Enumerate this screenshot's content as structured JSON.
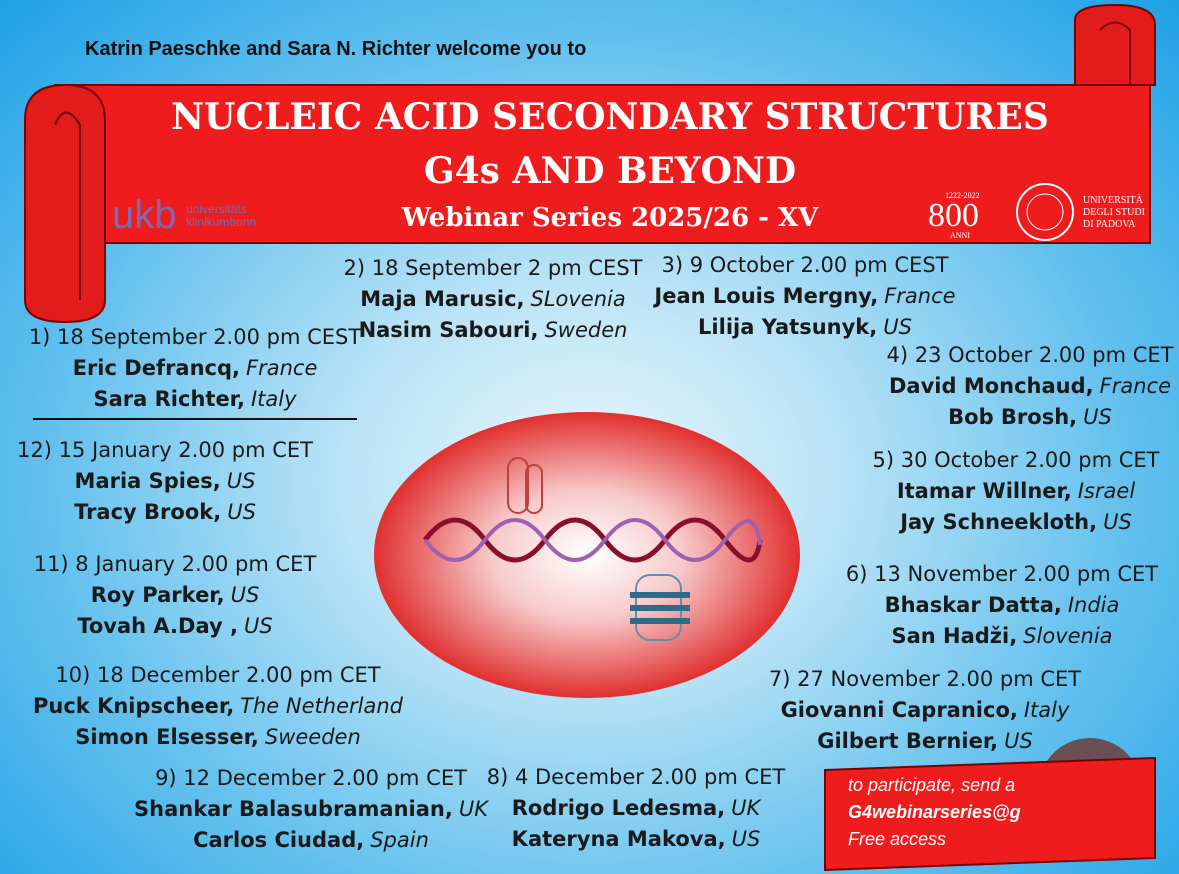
{
  "header": {
    "intro": "Katrin Paeschke and Sara N. Richter welcome you to"
  },
  "banner": {
    "title_line1": "NUCLEIC ACID SECONDARY STRUCTURES",
    "title_line2": "G4s AND BEYOND",
    "subtitle": "Webinar Series 2025/26 - XV",
    "left_logo": {
      "mark": "ukb",
      "line1": "universitäts",
      "line2": "klinikumbonn"
    },
    "right_logo": {
      "anniversary": "800",
      "years": "1222-2022",
      "anni": "ANNI",
      "university_line1": "UNIVERSITÀ",
      "university_line2": "DEGLI STUDI",
      "university_line3": "DI PADOVA"
    }
  },
  "sessions": [
    {
      "heading": "1) 18 September 2.00 pm CEST",
      "speakers": [
        {
          "name": "Eric Defrancq,",
          "country": "France"
        },
        {
          "name": "Sara Richter,",
          "country": "Italy"
        }
      ]
    },
    {
      "heading": "2) 18 September 2 pm CEST",
      "speakers": [
        {
          "name": "Maja Marusic,",
          "country": "SLovenia"
        },
        {
          "name": "Nasim Sabouri,",
          "country": "Sweden"
        }
      ]
    },
    {
      "heading": "3) 9 October 2.00 pm CEST",
      "speakers": [
        {
          "name": "Jean Louis Mergny,",
          "country": "France"
        },
        {
          "name": "Lilija Yatsunyk,",
          "country": "US"
        }
      ]
    },
    {
      "heading": "4) 23 October 2.00 pm CET",
      "speakers": [
        {
          "name": "David Monchaud,",
          "country": "France"
        },
        {
          "name": "Bob Brosh,",
          "country": "US"
        }
      ]
    },
    {
      "heading": "5) 30 October 2.00 pm CET",
      "speakers": [
        {
          "name": "Itamar Willner,",
          "country": "Israel"
        },
        {
          "name": "Jay Schneekloth,",
          "country": "US"
        }
      ]
    },
    {
      "heading": "6) 13 November 2.00 pm CET",
      "speakers": [
        {
          "name": "Bhaskar Datta,",
          "country": "India"
        },
        {
          "name": "San Hadži,",
          "country": "Slovenia"
        }
      ]
    },
    {
      "heading": "7) 27 November 2.00 pm CET",
      "speakers": [
        {
          "name": "Giovanni Capranico,",
          "country": "Italy"
        },
        {
          "name": "Gilbert Bernier,",
          "country": "US"
        }
      ]
    },
    {
      "heading": "8) 4 December 2.00 pm CET",
      "speakers": [
        {
          "name": "Rodrigo Ledesma,",
          "country": "UK"
        },
        {
          "name": "Kateryna Makova,",
          "country": "US"
        }
      ]
    },
    {
      "heading": "9) 12 December 2.00 pm CET",
      "speakers": [
        {
          "name": "Shankar Balasubramanian,",
          "country": "UK"
        },
        {
          "name": "Carlos Ciudad,",
          "country": "Spain"
        }
      ]
    },
    {
      "heading": "10) 18 December 2.00 pm CET",
      "speakers": [
        {
          "name": "Puck Knipscheer,",
          "country": "The Netherland"
        },
        {
          "name": "Simon Elsesser,",
          "country": "Sweeden"
        }
      ]
    },
    {
      "heading": "11) 8 January 2.00 pm CET",
      "speakers": [
        {
          "name": "Roy Parker,",
          "country": "US"
        },
        {
          "name": "Tovah A.Day ,",
          "country": "US"
        }
      ]
    },
    {
      "heading": "12) 15 January 2.00 pm CET",
      "speakers": [
        {
          "name": "Maria Spies,",
          "country": "US"
        },
        {
          "name": "Tracy Brook,",
          "country": "US"
        }
      ]
    }
  ],
  "participate": {
    "line1": "to participate, send a",
    "line2": "G4webinarseries@g",
    "line3": "Free access"
  }
}
